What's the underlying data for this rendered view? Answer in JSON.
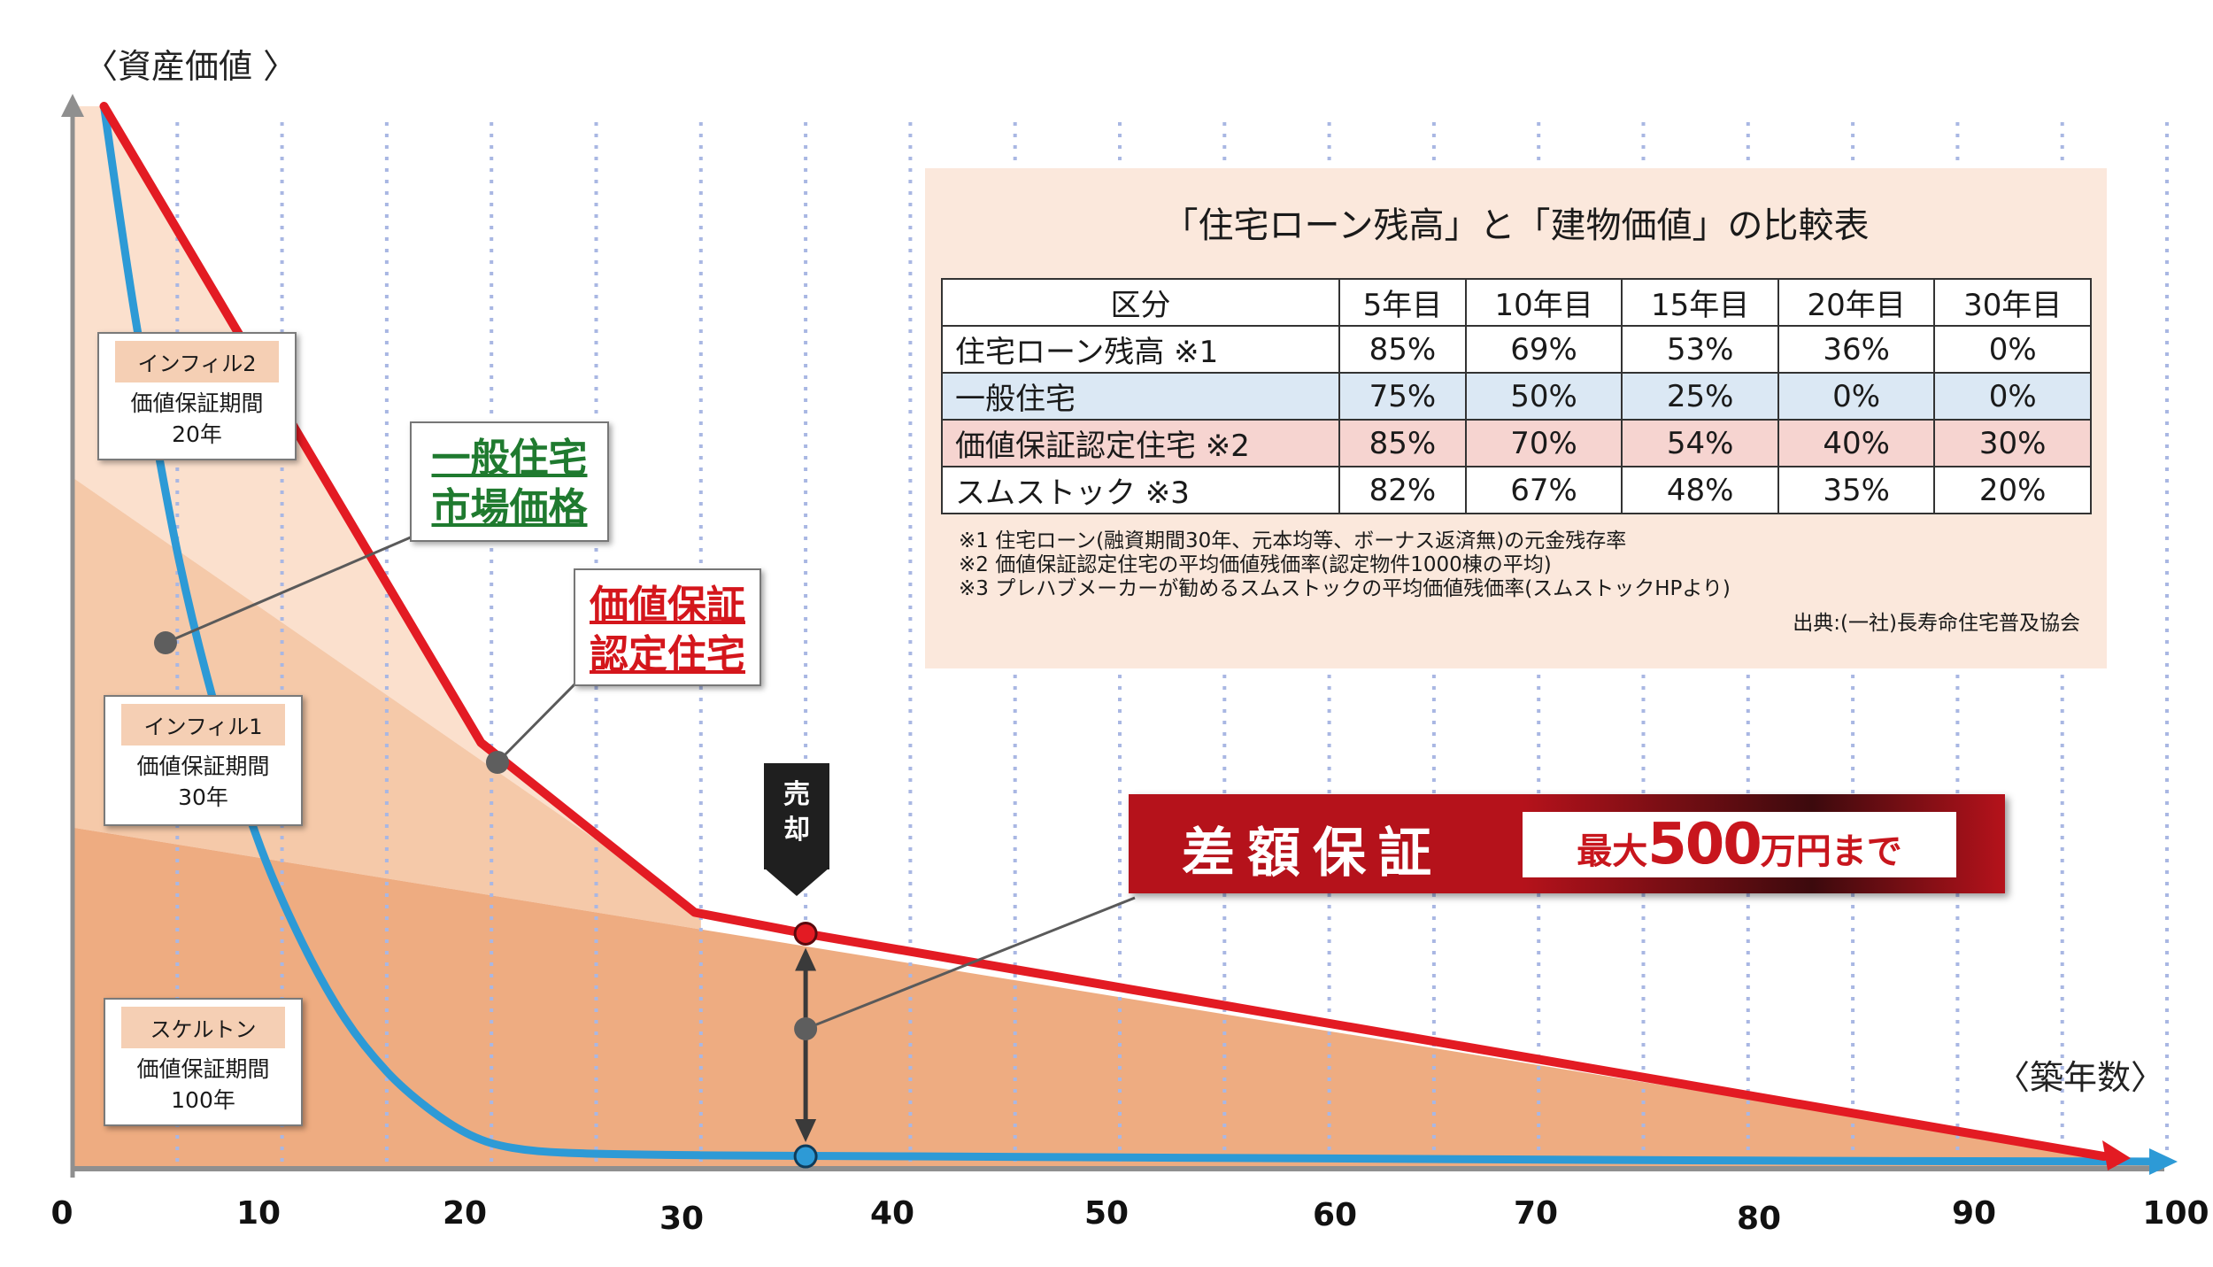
{
  "chart_data": {
    "type": "line",
    "title": "",
    "ylabel": "〈資産価値 〉",
    "xlabel": "〈築年数〉",
    "xlim": [
      0,
      100
    ],
    "x_ticks": [
      "0",
      "10",
      "20",
      "30",
      "40",
      "50",
      "60",
      "70",
      "80",
      "90",
      "100"
    ],
    "grid": "vertical dotted every 5 years",
    "series": [
      {
        "name": "価値保証認定住宅",
        "color": "#e31b23",
        "x": [
          1.5,
          19.5,
          29.7,
          35,
          97
        ],
        "y": [
          100,
          40,
          24,
          22,
          1
        ]
      },
      {
        "name": "一般住宅市場価格",
        "color": "#2d9ad6",
        "x": [
          1.5,
          3,
          5,
          7,
          9,
          11,
          13,
          15,
          17,
          19,
          21,
          24,
          30,
          40,
          60,
          80,
          100
        ],
        "y": [
          100,
          80,
          58,
          42,
          30,
          21,
          14,
          9,
          5.5,
          3,
          1.8,
          1.3,
          1.1,
          1.0,
          0.8,
          0.6,
          0.5
        ]
      }
    ],
    "areas": [
      {
        "name": "スケルトン",
        "color": "#eeac81",
        "x": [
          0,
          100
        ],
        "y": [
          32,
          0
        ]
      },
      {
        "name": "インフィル1",
        "color": "#f5c9a9",
        "x": [
          0,
          30
        ],
        "y": [
          65,
          24
        ]
      },
      {
        "name": "インフィル2",
        "color": "#fbe0cd",
        "x": [
          1.5,
          19.5
        ],
        "y": [
          100,
          40
        ]
      }
    ],
    "area_labels": [
      {
        "title": "インフィル2",
        "line1": "価値保証期間",
        "line2": "20年"
      },
      {
        "title": "インフィル1",
        "line1": "価値保証期間",
        "line2": "30年"
      },
      {
        "title": "スケルトン",
        "line1": "価値保証期間",
        "line2": "100年"
      }
    ],
    "callouts": {
      "general_line1": "一般住宅",
      "general_line2": "市場価格",
      "certified_line1": "価値保証",
      "certified_line2": "認定住宅"
    },
    "sale_marker": {
      "label_line1": "売",
      "label_line2": "却",
      "x": 35
    }
  },
  "banner": {
    "main": "差額保証",
    "pre": "最大",
    "num": "500",
    "post": "万円まで"
  },
  "table": {
    "title": "「住宅ローン残高」と「建物価値」の比較表",
    "headers": [
      "区分",
      "5年目",
      "10年目",
      "15年目",
      "20年目",
      "30年目"
    ],
    "rows": [
      {
        "label": "住宅ローン残高 ※1",
        "values": [
          "85%",
          "69%",
          "53%",
          "36%",
          "0%"
        ]
      },
      {
        "label": "一般住宅",
        "values": [
          "75%",
          "50%",
          "25%",
          "0%",
          "0%"
        ]
      },
      {
        "label": "価値保証認定住宅 ※2",
        "values": [
          "85%",
          "70%",
          "54%",
          "40%",
          "30%"
        ]
      },
      {
        "label": "スムストック ※3",
        "values": [
          "82%",
          "67%",
          "48%",
          "35%",
          "20%"
        ]
      }
    ],
    "notes": [
      "※1 住宅ローン(融資期間30年、元本均等、ボーナス返済無)の元金残存率",
      "※2 価値保証認定住宅の平均価値残価率(認定物件1000棟の平均)",
      "※3 プレハブメーカーが勧めるスムストックの平均価値残価率(スムストックHPより)"
    ],
    "source": "出典:(一社)長寿命住宅普及協会"
  }
}
